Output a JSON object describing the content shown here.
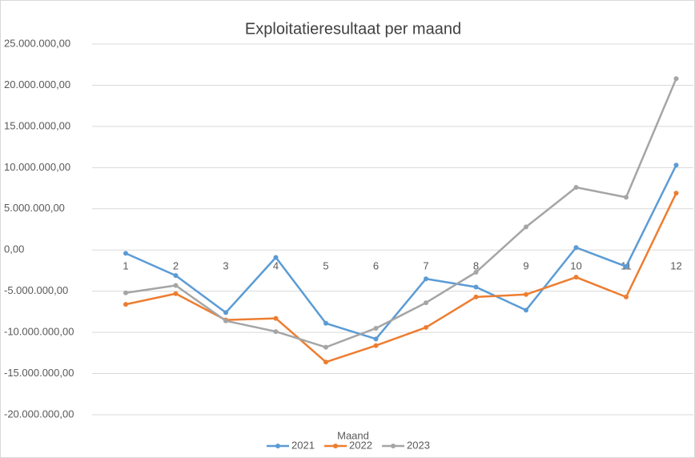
{
  "chart_data": {
    "type": "line",
    "title": "Exploitatieresultaat per maand",
    "x_label": "Maand",
    "categories": [
      "1",
      "2",
      "3",
      "4",
      "5",
      "6",
      "7",
      "8",
      "9",
      "10",
      "11",
      "12"
    ],
    "series": [
      {
        "name": "2021",
        "color": "#5b9bd5",
        "values": [
          -400000,
          -3100000,
          -7600000,
          -900000,
          -8900000,
          -10800000,
          -3500000,
          -4500000,
          -7300000,
          300000,
          -2000000,
          10300000
        ]
      },
      {
        "name": "2022",
        "color": "#ed7d31",
        "values": [
          -6600000,
          -5300000,
          -8500000,
          -8300000,
          -13600000,
          -11600000,
          -9400000,
          -5700000,
          -5400000,
          -3300000,
          -5700000,
          6900000
        ]
      },
      {
        "name": "2023",
        "color": "#a5a5a5",
        "values": [
          -5200000,
          -4300000,
          -8600000,
          -9900000,
          -11800000,
          -9500000,
          -6400000,
          -2700000,
          2800000,
          7600000,
          6400000,
          20800000
        ]
      }
    ],
    "ylim": [
      -20000000,
      25000000
    ],
    "yticks": [
      {
        "value": -20000000,
        "label": "-20.000.000,00"
      },
      {
        "value": -15000000,
        "label": "-15.000.000,00"
      },
      {
        "value": -10000000,
        "label": "-10.000.000,00"
      },
      {
        "value": -5000000,
        "label": "-5.000.000,00"
      },
      {
        "value": 0,
        "label": "0,00"
      },
      {
        "value": 5000000,
        "label": "5.000.000,00"
      },
      {
        "value": 10000000,
        "label": "10.000.000,00"
      },
      {
        "value": 15000000,
        "label": "15.000.000,00"
      },
      {
        "value": 20000000,
        "label": "20.000.000,00"
      },
      {
        "value": 25000000,
        "label": "25.000.000,00"
      }
    ],
    "grid": true,
    "legend": "bottom"
  }
}
